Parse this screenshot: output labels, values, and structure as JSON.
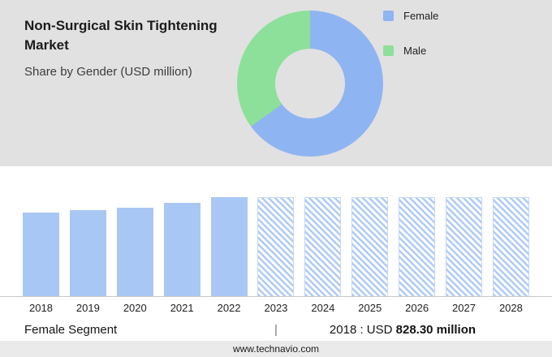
{
  "header": {
    "title": "Non-Surgical Skin Tightening Market",
    "subtitle": "Share by Gender (USD million)"
  },
  "legend": {
    "items": [
      {
        "label": "Female",
        "color": "#8fb4f2"
      },
      {
        "label": "Male",
        "color": "#8ce09a"
      }
    ]
  },
  "chart_data": [
    {
      "type": "pie",
      "title": "Share by Gender (USD million)",
      "labels": [
        "Female",
        "Male"
      ],
      "values": [
        65,
        35
      ],
      "value_note": "percent, estimated from arc angles",
      "colors": [
        "#8fb4f2",
        "#8ce09a"
      ],
      "donut": true,
      "legend_position": "right"
    },
    {
      "type": "bar",
      "categories": [
        "2018",
        "2019",
        "2020",
        "2021",
        "2022",
        "2023",
        "2024",
        "2025",
        "2026",
        "2027",
        "2028"
      ],
      "values": [
        828.3,
        852,
        884,
        926,
        985,
        985,
        985,
        985,
        985,
        985,
        985
      ],
      "value_note": "USD million; 2018 labeled 828.30, later years estimated from bar heights",
      "forecast_from_index": 5,
      "xlabel": "",
      "ylabel": "USD million",
      "grid": false,
      "bar_color": "#a9c7f4",
      "forecast_style": "hatched"
    }
  ],
  "summary": {
    "segment_label": "Female Segment",
    "divider": "|",
    "stat_prefix": "2018 : USD ",
    "stat_value": "828.30 million"
  },
  "footer": {
    "website": "www.technavio.com"
  }
}
